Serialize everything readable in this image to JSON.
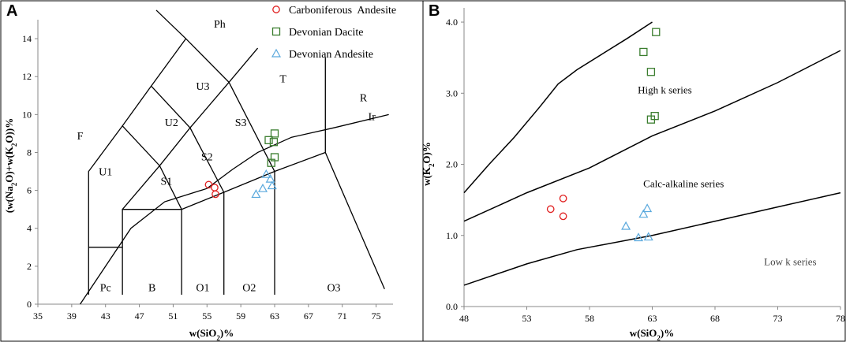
{
  "chart_data": [
    {
      "panel": "A",
      "type": "scatter",
      "title": "",
      "xlabel": "w(SiO2)%",
      "ylabel": "(w(Na2O)+w(K2O))%",
      "xlim": [
        35,
        77
      ],
      "ylim": [
        0,
        15
      ],
      "xticks": [
        35,
        39,
        43,
        47,
        51,
        55,
        59,
        63,
        67,
        71,
        75
      ],
      "yticks": [
        0,
        2,
        4,
        6,
        8,
        10,
        12,
        14
      ],
      "field_labels": [
        "F",
        "Ph",
        "U3",
        "U2",
        "U1",
        "S3",
        "S2",
        "S1",
        "T",
        "R",
        "Ir",
        "Pc",
        "B",
        "O1",
        "O2",
        "O3"
      ],
      "series": [
        {
          "name": "Carboniferous Andesite",
          "marker": "circle",
          "color": "#e02020",
          "points": [
            [
              55.2,
              6.3
            ],
            [
              55.9,
              6.15
            ],
            [
              56.0,
              5.8
            ]
          ]
        },
        {
          "name": "Devonian Dacite",
          "marker": "square",
          "color": "#3a7d2e",
          "points": [
            [
              62.3,
              8.65
            ],
            [
              63.0,
              9.0
            ],
            [
              62.9,
              8.55
            ],
            [
              63.0,
              7.75
            ],
            [
              62.6,
              7.45
            ]
          ]
        },
        {
          "name": "Devonian Andesite",
          "marker": "triangle",
          "color": "#5aa9dd",
          "points": [
            [
              60.8,
              5.8
            ],
            [
              61.6,
              6.1
            ],
            [
              62.0,
              6.85
            ],
            [
              62.5,
              6.6
            ],
            [
              62.7,
              6.25
            ]
          ]
        }
      ]
    },
    {
      "panel": "B",
      "type": "scatter",
      "title": "",
      "xlabel": "w(SiO2)%",
      "ylabel": "w(K2O)%",
      "xlim": [
        48,
        78
      ],
      "ylim": [
        0,
        4.2
      ],
      "xticks": [
        48,
        53,
        58,
        63,
        68,
        73,
        78
      ],
      "xtick_labels": [
        "48",
        "53",
        "58",
        "63",
        "68",
        "73",
        "78"
      ],
      "yticks": [
        0,
        1,
        2,
        3,
        4
      ],
      "ytick_labels": [
        "0.0",
        "1.0",
        "2.0",
        "3.0",
        "4.0"
      ],
      "series_labels": [
        "High k series",
        "Calc-alkaline series",
        "Low k series"
      ],
      "series": [
        {
          "name": "Carboniferous Andesite",
          "marker": "circle",
          "color": "#e02020",
          "points": [
            [
              54.9,
              1.37
            ],
            [
              55.9,
              1.52
            ],
            [
              55.9,
              1.27
            ]
          ]
        },
        {
          "name": "Devonian Dacite",
          "marker": "square",
          "color": "#3a7d2e",
          "points": [
            [
              63.3,
              3.86
            ],
            [
              62.3,
              3.58
            ],
            [
              62.9,
              3.3
            ],
            [
              63.2,
              2.68
            ],
            [
              62.9,
              2.63
            ]
          ]
        },
        {
          "name": "Devonian Andesite",
          "marker": "triangle",
          "color": "#5aa9dd",
          "points": [
            [
              60.9,
              1.13
            ],
            [
              62.3,
              1.3
            ],
            [
              62.6,
              1.38
            ],
            [
              61.9,
              0.97
            ],
            [
              62.7,
              0.98
            ]
          ]
        }
      ]
    }
  ],
  "legend": {
    "items": [
      {
        "label": "Carboniferous  Andesite",
        "marker": "circle",
        "color": "#e02020"
      },
      {
        "label": "Devonian Dacite",
        "marker": "square",
        "color": "#3a7d2e"
      },
      {
        "label": "Devonian Andesite",
        "marker": "triangle",
        "color": "#5aa9dd"
      }
    ]
  },
  "panel_letters": [
    "A",
    "B"
  ]
}
